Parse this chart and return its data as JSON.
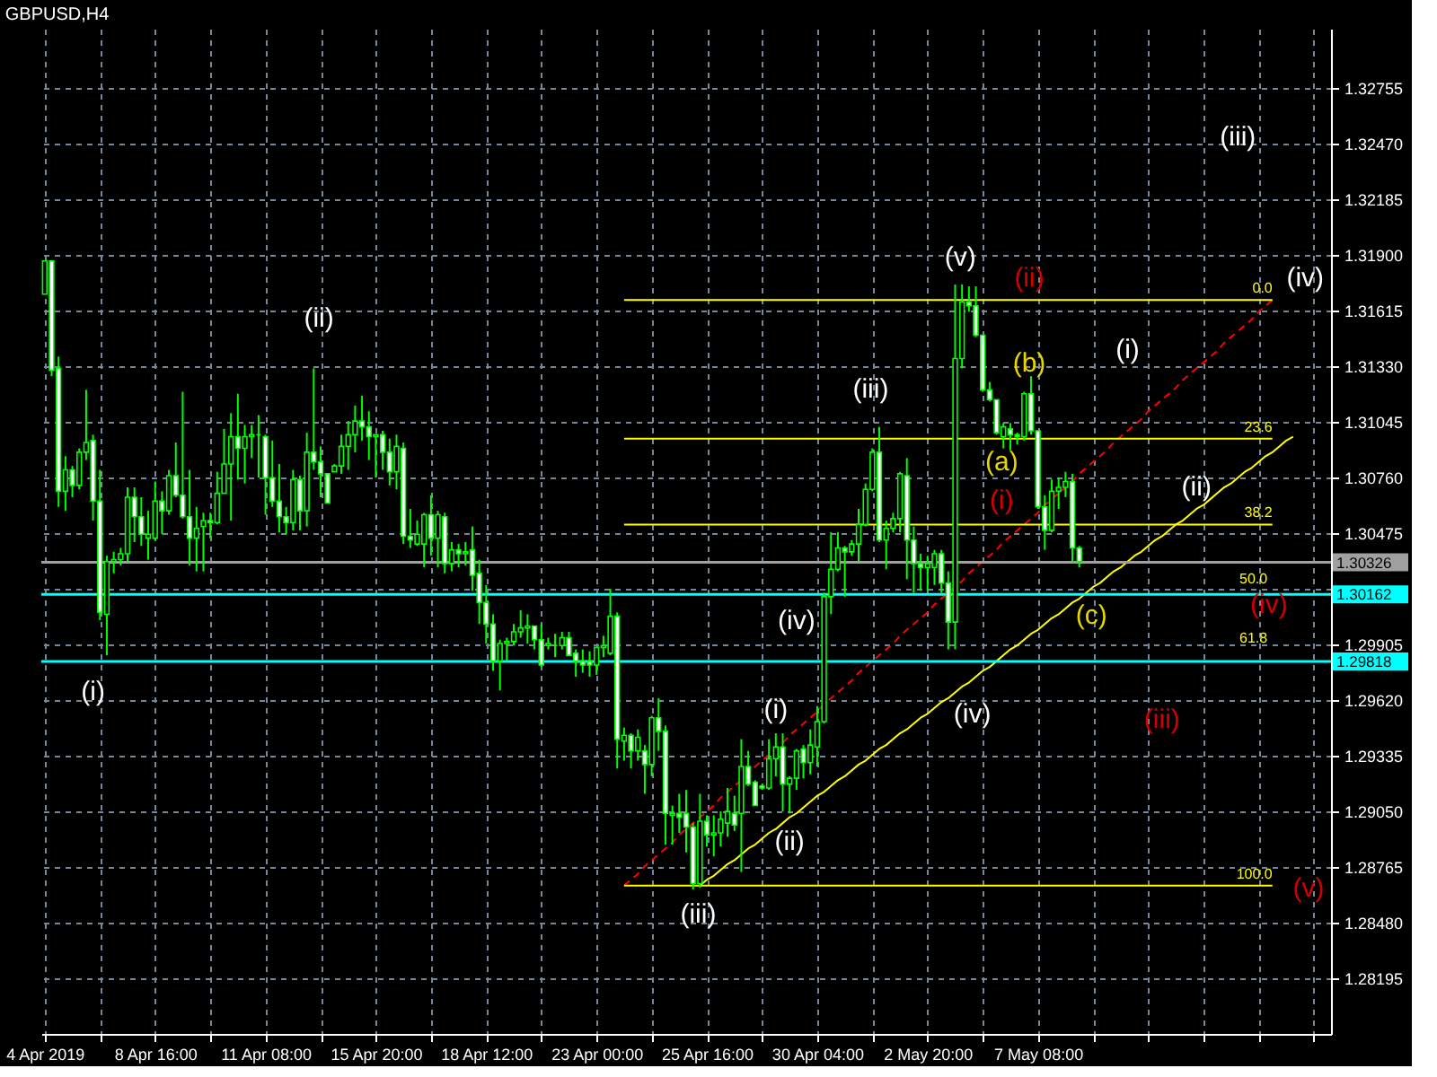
{
  "chart_data": {
    "type": "candlestick",
    "title": "GBPUSD,H4",
    "color": "#00ff00",
    "categories": [
      "4 Apr 2019",
      null,
      null,
      null,
      null,
      null,
      null,
      null,
      null,
      null,
      null,
      null,
      null,
      null,
      null,
      null,
      "8 Apr 16:00",
      null,
      null,
      null,
      null,
      null,
      null,
      null,
      null,
      null,
      null,
      null,
      null,
      null,
      null,
      null,
      "11 Apr 08:00",
      null,
      null,
      null,
      null,
      null,
      null,
      null,
      null,
      null,
      null,
      null,
      null,
      null,
      null,
      null,
      "15 Apr 20:00",
      null,
      null,
      null,
      null,
      null,
      null,
      null,
      null,
      null,
      null,
      null,
      null,
      null,
      null,
      null,
      "18 Apr 12:00",
      null,
      null,
      null,
      null,
      null,
      null,
      null,
      null,
      null,
      null,
      null,
      null,
      null,
      null,
      null,
      "23 Apr 00:00",
      null,
      null,
      null,
      null,
      null,
      null,
      null,
      null,
      null,
      null,
      null,
      null,
      null,
      null,
      null,
      "25 Apr 16:00",
      null,
      null,
      null,
      null,
      null,
      null,
      null,
      null,
      null,
      null,
      null,
      null,
      null,
      null,
      null,
      "30 Apr 04:00",
      null,
      null,
      null,
      null,
      null,
      null,
      null,
      null,
      null,
      null,
      null,
      null,
      null,
      null,
      null,
      "2 May 20:00",
      null,
      null,
      null,
      null,
      null,
      null,
      null,
      null,
      null,
      null,
      null,
      null,
      null,
      null,
      null,
      "7 May 08:00",
      null,
      null,
      null,
      null,
      null,
      null,
      null,
      null,
      null,
      null,
      null,
      null,
      null,
      null,
      null,
      null,
      null,
      null,
      null,
      null,
      null,
      null,
      null,
      null,
      null,
      null,
      null,
      null,
      null,
      null,
      null,
      null,
      null,
      null,
      null,
      null,
      null,
      null,
      null,
      null,
      null,
      null
    ],
    "ohlc": [
      [
        1.317,
        1.3187,
        1.317,
        1.3187
      ],
      [
        1.3187,
        1.3187,
        1.3128,
        1.3131
      ],
      [
        1.3132,
        1.3138,
        1.3061,
        1.3069
      ],
      [
        1.3069,
        1.3087,
        1.3059,
        1.308
      ],
      [
        1.308,
        1.3082,
        1.3066,
        1.3072
      ],
      [
        1.3072,
        1.3091,
        1.307,
        1.3089
      ],
      [
        1.3089,
        1.3121,
        1.3085,
        1.3094
      ],
      [
        1.3095,
        1.3098,
        1.3054,
        1.3064
      ],
      [
        1.3064,
        1.308,
        1.3003,
        1.3007
      ],
      [
        1.3006,
        1.3036,
        1.2985,
        1.3033
      ],
      [
        1.3033,
        1.3038,
        1.3027,
        1.3034
      ],
      [
        1.3034,
        1.304,
        1.3031,
        1.3037
      ],
      [
        1.3037,
        1.3071,
        1.3033,
        1.3066
      ],
      [
        1.3066,
        1.3071,
        1.3043,
        1.3056
      ],
      [
        1.3056,
        1.3066,
        1.3041,
        1.3047
      ],
      [
        1.3045,
        1.3059,
        1.3034,
        1.3047
      ],
      [
        1.3045,
        1.3074,
        1.3044,
        1.3064
      ],
      [
        1.3064,
        1.3069,
        1.3047,
        1.3059
      ],
      [
        1.3059,
        1.308,
        1.3057,
        1.3077
      ],
      [
        1.3077,
        1.3094,
        1.3066,
        1.3067
      ],
      [
        1.3067,
        1.312,
        1.3055,
        1.3056
      ],
      [
        1.3056,
        1.308,
        1.3031,
        1.3045
      ],
      [
        1.3045,
        1.3061,
        1.3028,
        1.305
      ],
      [
        1.3051,
        1.3058,
        1.3028,
        1.3054
      ],
      [
        1.3054,
        1.3058,
        1.3045,
        1.3053
      ],
      [
        1.3053,
        1.3079,
        1.3052,
        1.3068
      ],
      [
        1.3068,
        1.3101,
        1.3068,
        1.3083
      ],
      [
        1.3083,
        1.3109,
        1.3054,
        1.3097
      ],
      [
        1.3097,
        1.3119,
        1.3075,
        1.3091
      ],
      [
        1.3091,
        1.3103,
        1.3073,
        1.3097
      ],
      [
        1.3097,
        1.3103,
        1.3086,
        1.3098
      ],
      [
        1.3098,
        1.3108,
        1.3076,
        1.3098
      ],
      [
        1.3097,
        1.3098,
        1.3057,
        1.3076
      ],
      [
        1.3076,
        1.3095,
        1.3061,
        1.3064
      ],
      [
        1.3064,
        1.3083,
        1.3048,
        1.3056
      ],
      [
        1.3056,
        1.3061,
        1.3047,
        1.3053
      ],
      [
        1.3053,
        1.308,
        1.3049,
        1.3075
      ],
      [
        1.3075,
        1.3077,
        1.3049,
        1.3059
      ],
      [
        1.3059,
        1.3099,
        1.3051,
        1.3089
      ],
      [
        1.3089,
        1.3132,
        1.308,
        1.3084
      ],
      [
        1.3084,
        1.3092,
        1.3066,
        1.3078
      ],
      [
        1.3078,
        1.3078,
        1.3063,
        1.3063
      ],
      [
        1.3079,
        1.3083,
        1.3079,
        1.3082
      ],
      [
        1.3082,
        1.3098,
        1.3078,
        1.3092
      ],
      [
        1.3092,
        1.3105,
        1.308,
        1.3098
      ],
      [
        1.3098,
        1.3113,
        1.3089,
        1.3105
      ],
      [
        1.3105,
        1.3118,
        1.3095,
        1.3102
      ],
      [
        1.3102,
        1.311,
        1.3085,
        1.3097
      ],
      [
        1.3097,
        1.3098,
        1.3076,
        1.3098
      ],
      [
        1.3098,
        1.31,
        1.308,
        1.3089
      ],
      [
        1.3089,
        1.3096,
        1.3072,
        1.3079
      ],
      [
        1.3079,
        1.3098,
        1.307,
        1.3092
      ],
      [
        1.3091,
        1.3094,
        1.3042,
        1.3046
      ],
      [
        1.3046,
        1.306,
        1.304,
        1.3044
      ],
      [
        1.3042,
        1.3054,
        1.3041,
        1.3047
      ],
      [
        1.3042,
        1.3058,
        1.303,
        1.3057
      ],
      [
        1.3057,
        1.3067,
        1.3036,
        1.3045
      ],
      [
        1.3045,
        1.3059,
        1.303,
        1.3057
      ],
      [
        1.3056,
        1.3058,
        1.3027,
        1.3032
      ],
      [
        1.3032,
        1.3043,
        1.3028,
        1.3039
      ],
      [
        1.3039,
        1.3042,
        1.303,
        1.3037
      ],
      [
        1.3037,
        1.3043,
        1.3031,
        1.3038
      ],
      [
        1.3039,
        1.3051,
        1.3018,
        1.3026
      ],
      [
        1.3027,
        1.3034,
        1.3001,
        1.3012
      ],
      [
        1.3012,
        1.3021,
        1.2991,
        1.3001
      ],
      [
        1.3001,
        1.3006,
        1.2977,
        1.2982
      ],
      [
        1.2982,
        1.2993,
        1.2967,
        1.2991
      ],
      [
        1.2991,
        1.2994,
        1.2982,
        1.2992
      ],
      [
        1.2992,
        1.3001,
        1.299,
        1.2997
      ],
      [
        1.2997,
        1.3008,
        1.2994,
        1.2999
      ],
      [
        1.2999,
        1.3006,
        1.2991,
        1.3
      ],
      [
        1.3,
        1.3,
        1.2988,
        1.2993
      ],
      [
        1.2993,
        1.3001,
        1.2979,
        1.298
      ],
      [
        1.299,
        1.2994,
        1.2988,
        1.2991
      ],
      [
        1.299,
        1.2996,
        1.2984,
        1.299
      ],
      [
        1.299,
        1.2997,
        1.2988,
        1.2994
      ],
      [
        1.2994,
        1.2997,
        1.2985,
        1.2985
      ],
      [
        1.2986,
        1.2988,
        1.2974,
        1.2982
      ],
      [
        1.2982,
        1.2988,
        1.2976,
        1.298
      ],
      [
        1.2982,
        1.2987,
        1.2974,
        1.298
      ],
      [
        1.298,
        1.2989,
        1.2975,
        1.2989
      ],
      [
        1.2989,
        1.2995,
        1.2984,
        1.299
      ],
      [
        1.2986,
        1.3019,
        1.2985,
        1.3005
      ],
      [
        1.3005,
        1.3007,
        1.2927,
        1.2942
      ],
      [
        1.2941,
        1.2948,
        1.2931,
        1.2944
      ],
      [
        1.2944,
        1.2945,
        1.2927,
        1.2936
      ],
      [
        1.2936,
        1.2947,
        1.2931,
        1.2943
      ],
      [
        1.2936,
        1.2939,
        1.2914,
        1.2929
      ],
      [
        1.2929,
        1.2954,
        1.2923,
        1.2953
      ],
      [
        1.2953,
        1.2963,
        1.2936,
        1.2946
      ],
      [
        1.2946,
        1.2949,
        1.2888,
        1.2904
      ],
      [
        1.2903,
        1.2908,
        1.2888,
        1.2904
      ],
      [
        1.2904,
        1.2914,
        1.2894,
        1.2902
      ],
      [
        1.2904,
        1.2916,
        1.2884,
        1.2897
      ],
      [
        1.2897,
        1.2899,
        1.2865,
        1.2868
      ],
      [
        1.2868,
        1.2914,
        1.2866,
        1.29
      ],
      [
        1.29,
        1.2903,
        1.2887,
        1.2893
      ],
      [
        1.2893,
        1.2903,
        1.2882,
        1.2894
      ],
      [
        1.2894,
        1.2905,
        1.2887,
        1.2901
      ],
      [
        1.2899,
        1.2917,
        1.2892,
        1.2905
      ],
      [
        1.2904,
        1.2913,
        1.2895,
        1.2898
      ],
      [
        1.2904,
        1.2942,
        1.2874,
        1.2928
      ],
      [
        1.2928,
        1.2936,
        1.2918,
        1.2919
      ],
      [
        1.292,
        1.2921,
        1.2908,
        1.2908
      ],
      [
        1.2918,
        1.2919,
        1.2916,
        1.2917
      ],
      [
        1.2917,
        1.2942,
        1.2916,
        1.2932
      ],
      [
        1.2932,
        1.2945,
        1.2923,
        1.2938
      ],
      [
        1.2938,
        1.2945,
        1.2905,
        1.2919
      ],
      [
        1.2919,
        1.2923,
        1.2904,
        1.2922
      ],
      [
        1.2922,
        1.2937,
        1.2916,
        1.2936
      ],
      [
        1.2937,
        1.2939,
        1.2922,
        1.293
      ],
      [
        1.293,
        1.2947,
        1.2924,
        1.2939
      ],
      [
        1.2938,
        1.2959,
        1.2928,
        1.2951
      ],
      [
        1.2951,
        1.3017,
        1.295,
        1.3015
      ],
      [
        1.3015,
        1.3048,
        1.3006,
        1.3029
      ],
      [
        1.3029,
        1.3048,
        1.3028,
        1.304
      ],
      [
        1.304,
        1.3041,
        1.3015,
        1.3038
      ],
      [
        1.3038,
        1.3044,
        1.3036,
        1.3042
      ],
      [
        1.3042,
        1.306,
        1.3033,
        1.3052
      ],
      [
        1.3052,
        1.3073,
        1.3051,
        1.307
      ],
      [
        1.307,
        1.3091,
        1.3069,
        1.3089
      ],
      [
        1.3089,
        1.3102,
        1.3043,
        1.3044
      ],
      [
        1.3044,
        1.3054,
        1.3029,
        1.305
      ],
      [
        1.305,
        1.3058,
        1.3048,
        1.3055
      ],
      [
        1.3055,
        1.3079,
        1.3048,
        1.3078
      ],
      [
        1.3077,
        1.3086,
        1.3024,
        1.3044
      ],
      [
        1.3044,
        1.3051,
        1.3017,
        1.3032
      ],
      [
        1.3032,
        1.3037,
        1.3018,
        1.303
      ],
      [
        1.303,
        1.3036,
        1.3018,
        1.3032
      ],
      [
        1.303,
        1.3039,
        1.3021,
        1.3037
      ],
      [
        1.3037,
        1.3039,
        1.3017,
        1.3022
      ],
      [
        1.3022,
        1.3028,
        1.2988,
        1.3002
      ],
      [
        1.3002,
        1.3175,
        1.2988,
        1.3137
      ],
      [
        1.3137,
        1.3175,
        1.3132,
        1.3166
      ],
      [
        1.3166,
        1.3174,
        1.3161,
        1.3164
      ],
      [
        1.3164,
        1.3174,
        1.3148,
        1.3149
      ],
      [
        1.3149,
        1.3149,
        1.312,
        1.3121
      ],
      [
        1.3121,
        1.3125,
        1.3115,
        1.3116
      ],
      [
        1.3116,
        1.3116,
        1.3098,
        1.3099
      ],
      [
        1.3097,
        1.3104,
        1.3091,
        1.3102
      ],
      [
        1.3101,
        1.3104,
        1.309,
        1.3098
      ],
      [
        1.3098,
        1.3099,
        1.3093,
        1.3097
      ],
      [
        1.3097,
        1.312,
        1.3095,
        1.3119
      ],
      [
        1.3119,
        1.3128,
        1.3098,
        1.31
      ],
      [
        1.31,
        1.31,
        1.306,
        1.3061
      ],
      [
        1.3061,
        1.3067,
        1.3039,
        1.3049
      ],
      [
        1.3049,
        1.3075,
        1.3048,
        1.3069
      ],
      [
        1.3069,
        1.3076,
        1.306,
        1.3071
      ],
      [
        1.3071,
        1.3079,
        1.3066,
        1.3074
      ],
      [
        1.3074,
        1.3078,
        1.3033,
        1.304
      ],
      [
        1.304,
        1.3041,
        1.303,
        1.3033
      ],
      null,
      null,
      null,
      null,
      null,
      null,
      null,
      null,
      null,
      null,
      null,
      null,
      null,
      null,
      null,
      null,
      null,
      null,
      null,
      null,
      null,
      null,
      null,
      null,
      null,
      null,
      null,
      null,
      null,
      null,
      null,
      null,
      null,
      null,
      null,
      null
    ],
    "series": [
      {
        "type": "line",
        "color": "#ff0000",
        "line_style": "dashed",
        "values": [
          null,
          null,
          null,
          null,
          null,
          null,
          null,
          null,
          null,
          null,
          null,
          null,
          null,
          null,
          null,
          null,
          null,
          null,
          null,
          null,
          null,
          null,
          null,
          null,
          null,
          null,
          null,
          null,
          null,
          null,
          null,
          null,
          null,
          null,
          null,
          null,
          null,
          null,
          null,
          null,
          null,
          null,
          null,
          null,
          null,
          null,
          null,
          null,
          null,
          null,
          null,
          null,
          null,
          null,
          null,
          null,
          null,
          null,
          null,
          null,
          null,
          null,
          null,
          null,
          null,
          null,
          null,
          null,
          null,
          null,
          null,
          null,
          null,
          null,
          null,
          null,
          null,
          null,
          null,
          null,
          null,
          null,
          null,
          null,
          1.2867,
          1.287,
          1.2873,
          1.2877,
          1.288,
          1.2883,
          1.2886,
          1.2889,
          1.2893,
          1.2896,
          1.2899,
          1.2902,
          1.2905,
          1.2908,
          1.2912,
          1.2915,
          1.2918,
          1.2921,
          1.2924,
          1.2928,
          1.2931,
          1.2934,
          1.2937,
          1.294,
          1.2944,
          1.2947,
          1.295,
          1.2953,
          1.2956,
          1.296,
          1.2963,
          1.2966,
          1.2969,
          1.2972,
          1.2976,
          1.2979,
          1.2982,
          1.2985,
          1.2988,
          1.2991,
          1.2995,
          1.2998,
          1.3001,
          1.3004,
          1.3007,
          1.3011,
          1.3014,
          1.3017,
          1.302,
          1.3023,
          1.3027,
          1.303,
          1.3033,
          1.3036,
          1.3039,
          1.3043,
          1.3046,
          1.3049,
          1.3052,
          1.3055,
          1.3058,
          1.3062,
          1.3065,
          1.3068,
          1.3071,
          1.3074,
          1.3078,
          1.3081,
          1.3084,
          1.3087,
          1.309,
          1.3094,
          1.3097,
          1.31,
          1.3103,
          1.3106,
          1.311,
          1.3113,
          1.3116,
          1.3119,
          1.3122,
          1.3126,
          1.3129,
          1.3132,
          1.3135,
          1.3138,
          1.3141,
          1.3145,
          1.3148,
          1.3151,
          1.3154,
          1.3157,
          1.3161,
          1.3164,
          1.3167,
          null,
          null,
          null,
          null,
          null,
          null,
          null,
          null
        ]
      },
      {
        "type": "line",
        "color": "#ffff00",
        "values": [
          null,
          null,
          null,
          null,
          null,
          null,
          null,
          null,
          null,
          null,
          null,
          null,
          null,
          null,
          null,
          null,
          null,
          null,
          null,
          null,
          null,
          null,
          null,
          null,
          null,
          null,
          null,
          null,
          null,
          null,
          null,
          null,
          null,
          null,
          null,
          null,
          null,
          null,
          null,
          null,
          null,
          null,
          null,
          null,
          null,
          null,
          null,
          null,
          null,
          null,
          null,
          null,
          null,
          null,
          null,
          null,
          null,
          null,
          null,
          null,
          null,
          null,
          null,
          null,
          null,
          null,
          null,
          null,
          null,
          null,
          null,
          null,
          null,
          null,
          null,
          null,
          null,
          null,
          null,
          null,
          null,
          null,
          null,
          null,
          null,
          null,
          null,
          null,
          null,
          null,
          null,
          null,
          null,
          null,
          null,
          1.2867,
          1.287,
          1.2872,
          1.2875,
          1.2878,
          1.288,
          1.2883,
          1.2886,
          1.2888,
          1.2891,
          1.2894,
          1.2896,
          1.2899,
          1.2902,
          1.2904,
          1.2907,
          1.291,
          1.2913,
          1.2915,
          1.2918,
          1.2921,
          1.2923,
          1.2926,
          1.2929,
          1.2931,
          1.2934,
          1.2937,
          1.2939,
          1.2942,
          1.2945,
          1.2947,
          1.295,
          1.2953,
          1.2955,
          1.2958,
          1.2961,
          1.2963,
          1.2966,
          1.2969,
          1.2971,
          1.2974,
          1.2977,
          1.2979,
          1.2982,
          1.2985,
          1.2988,
          1.299,
          1.2993,
          1.2996,
          1.2998,
          1.3001,
          1.3004,
          1.3006,
          1.3009,
          1.3012,
          1.3014,
          1.3017,
          1.302,
          1.3022,
          1.3025,
          1.3028,
          1.303,
          1.3033,
          1.3036,
          1.3038,
          1.3041,
          1.3044,
          1.3046,
          1.3049,
          1.3052,
          1.3054,
          1.3057,
          1.306,
          1.3062,
          1.3065,
          1.3068,
          1.3071,
          1.3073,
          1.3076,
          1.3079,
          1.3081,
          1.3084,
          1.3087,
          1.3089,
          1.3092,
          1.3095,
          1.3097,
          null,
          null,
          null,
          null,
          null
        ]
      },
      {
        "type": "line",
        "name": "0.0",
        "color": "#ffff00",
        "values": [
          null,
          null,
          null,
          null,
          null,
          null,
          null,
          null,
          null,
          null,
          null,
          null,
          null,
          null,
          null,
          null,
          null,
          null,
          null,
          null,
          null,
          null,
          null,
          null,
          null,
          null,
          null,
          null,
          null,
          null,
          null,
          null,
          null,
          null,
          null,
          null,
          null,
          null,
          null,
          null,
          null,
          null,
          null,
          null,
          null,
          null,
          null,
          null,
          null,
          null,
          null,
          null,
          null,
          null,
          null,
          null,
          null,
          null,
          null,
          null,
          null,
          null,
          null,
          null,
          null,
          null,
          null,
          null,
          null,
          null,
          null,
          null,
          null,
          null,
          null,
          null,
          null,
          null,
          null,
          null,
          null,
          null,
          null,
          null,
          1.3167,
          1.3167,
          1.3167,
          1.3167,
          1.3167,
          1.3167,
          1.3167,
          1.3167,
          1.3167,
          1.3167,
          1.3167,
          1.3167,
          1.3167,
          1.3167,
          1.3167,
          1.3167,
          1.3167,
          1.3167,
          1.3167,
          1.3167,
          1.3167,
          1.3167,
          1.3167,
          1.3167,
          1.3167,
          1.3167,
          1.3167,
          1.3167,
          1.3167,
          1.3167,
          1.3167,
          1.3167,
          1.3167,
          1.3167,
          1.3167,
          1.3167,
          1.3167,
          1.3167,
          1.3167,
          1.3167,
          1.3167,
          1.3167,
          1.3167,
          1.3167,
          1.3167,
          1.3167,
          1.3167,
          1.3167,
          1.3167,
          1.3167,
          1.3167,
          1.3167,
          1.3167,
          1.3167,
          1.3167,
          1.3167,
          1.3167,
          1.3167,
          1.3167,
          1.3167,
          1.3167,
          1.3167,
          1.3167,
          1.3167,
          1.3167,
          1.3167,
          1.3167,
          1.3167,
          1.3167,
          1.3167,
          1.3167,
          1.3167,
          1.3167,
          1.3167,
          1.3167,
          1.3167,
          1.3167,
          1.3167,
          1.3167,
          1.3167,
          1.3167,
          1.3167,
          1.3167,
          1.3167,
          1.3167,
          1.3167,
          1.3167,
          1.3167,
          1.3167,
          1.3167,
          1.3167,
          1.3167,
          1.3167,
          1.3167,
          1.3167,
          null,
          null,
          null,
          null,
          null,
          null,
          null,
          null
        ]
      },
      {
        "type": "line",
        "name": "23.6",
        "color": "#ffff00",
        "values": [
          null,
          null,
          null,
          null,
          null,
          null,
          null,
          null,
          null,
          null,
          null,
          null,
          null,
          null,
          null,
          null,
          null,
          null,
          null,
          null,
          null,
          null,
          null,
          null,
          null,
          null,
          null,
          null,
          null,
          null,
          null,
          null,
          null,
          null,
          null,
          null,
          null,
          null,
          null,
          null,
          null,
          null,
          null,
          null,
          null,
          null,
          null,
          null,
          null,
          null,
          null,
          null,
          null,
          null,
          null,
          null,
          null,
          null,
          null,
          null,
          null,
          null,
          null,
          null,
          null,
          null,
          null,
          null,
          null,
          null,
          null,
          null,
          null,
          null,
          null,
          null,
          null,
          null,
          null,
          null,
          null,
          null,
          null,
          null,
          1.3096,
          1.3096,
          1.3096,
          1.3096,
          1.3096,
          1.3096,
          1.3096,
          1.3096,
          1.3096,
          1.3096,
          1.3096,
          1.3096,
          1.3096,
          1.3096,
          1.3096,
          1.3096,
          1.3096,
          1.3096,
          1.3096,
          1.3096,
          1.3096,
          1.3096,
          1.3096,
          1.3096,
          1.3096,
          1.3096,
          1.3096,
          1.3096,
          1.3096,
          1.3096,
          1.3096,
          1.3096,
          1.3096,
          1.3096,
          1.3096,
          1.3096,
          1.3096,
          1.3096,
          1.3096,
          1.3096,
          1.3096,
          1.3096,
          1.3096,
          1.3096,
          1.3096,
          1.3096,
          1.3096,
          1.3096,
          1.3096,
          1.3096,
          1.3096,
          1.3096,
          1.3096,
          1.3096,
          1.3096,
          1.3096,
          1.3096,
          1.3096,
          1.3096,
          1.3096,
          1.3096,
          1.3096,
          1.3096,
          1.3096,
          1.3096,
          1.3096,
          1.3096,
          1.3096,
          1.3096,
          1.3096,
          1.3096,
          1.3096,
          1.3096,
          1.3096,
          1.3096,
          1.3096,
          1.3096,
          1.3096,
          1.3096,
          1.3096,
          1.3096,
          1.3096,
          1.3096,
          1.3096,
          1.3096,
          1.3096,
          1.3096,
          1.3096,
          1.3096,
          1.3096,
          1.3096,
          1.3096,
          1.3096,
          1.3096,
          1.3096,
          null,
          null,
          null,
          null,
          null,
          null,
          null,
          null
        ]
      },
      {
        "type": "line",
        "name": "38.2",
        "color": "#ffff00",
        "values": [
          null,
          null,
          null,
          null,
          null,
          null,
          null,
          null,
          null,
          null,
          null,
          null,
          null,
          null,
          null,
          null,
          null,
          null,
          null,
          null,
          null,
          null,
          null,
          null,
          null,
          null,
          null,
          null,
          null,
          null,
          null,
          null,
          null,
          null,
          null,
          null,
          null,
          null,
          null,
          null,
          null,
          null,
          null,
          null,
          null,
          null,
          null,
          null,
          null,
          null,
          null,
          null,
          null,
          null,
          null,
          null,
          null,
          null,
          null,
          null,
          null,
          null,
          null,
          null,
          null,
          null,
          null,
          null,
          null,
          null,
          null,
          null,
          null,
          null,
          null,
          null,
          null,
          null,
          null,
          null,
          null,
          null,
          null,
          null,
          1.3052,
          1.3052,
          1.3052,
          1.3052,
          1.3052,
          1.3052,
          1.3052,
          1.3052,
          1.3052,
          1.3052,
          1.3052,
          1.3052,
          1.3052,
          1.3052,
          1.3052,
          1.3052,
          1.3052,
          1.3052,
          1.3052,
          1.3052,
          1.3052,
          1.3052,
          1.3052,
          1.3052,
          1.3052,
          1.3052,
          1.3052,
          1.3052,
          1.3052,
          1.3052,
          1.3052,
          1.3052,
          1.3052,
          1.3052,
          1.3052,
          1.3052,
          1.3052,
          1.3052,
          1.3052,
          1.3052,
          1.3052,
          1.3052,
          1.3052,
          1.3052,
          1.3052,
          1.3052,
          1.3052,
          1.3052,
          1.3052,
          1.3052,
          1.3052,
          1.3052,
          1.3052,
          1.3052,
          1.3052,
          1.3052,
          1.3052,
          1.3052,
          1.3052,
          1.3052,
          1.3052,
          1.3052,
          1.3052,
          1.3052,
          1.3052,
          1.3052,
          1.3052,
          1.3052,
          1.3052,
          1.3052,
          1.3052,
          1.3052,
          1.3052,
          1.3052,
          1.3052,
          1.3052,
          1.3052,
          1.3052,
          1.3052,
          1.3052,
          1.3052,
          1.3052,
          1.3052,
          1.3052,
          1.3052,
          1.3052,
          1.3052,
          1.3052,
          1.3052,
          1.3052,
          1.3052,
          1.3052,
          1.3052,
          1.3052,
          1.3052,
          null,
          null,
          null,
          null,
          null,
          null,
          null,
          null
        ]
      },
      {
        "type": "line",
        "name": "100.0",
        "color": "#ffff00",
        "values": [
          null,
          null,
          null,
          null,
          null,
          null,
          null,
          null,
          null,
          null,
          null,
          null,
          null,
          null,
          null,
          null,
          null,
          null,
          null,
          null,
          null,
          null,
          null,
          null,
          null,
          null,
          null,
          null,
          null,
          null,
          null,
          null,
          null,
          null,
          null,
          null,
          null,
          null,
          null,
          null,
          null,
          null,
          null,
          null,
          null,
          null,
          null,
          null,
          null,
          null,
          null,
          null,
          null,
          null,
          null,
          null,
          null,
          null,
          null,
          null,
          null,
          null,
          null,
          null,
          null,
          null,
          null,
          null,
          null,
          null,
          null,
          null,
          null,
          null,
          null,
          null,
          null,
          null,
          null,
          null,
          null,
          null,
          null,
          null,
          1.2867,
          1.2867,
          1.2867,
          1.2867,
          1.2867,
          1.2867,
          1.2867,
          1.2867,
          1.2867,
          1.2867,
          1.2867,
          1.2867,
          1.2867,
          1.2867,
          1.2867,
          1.2867,
          1.2867,
          1.2867,
          1.2867,
          1.2867,
          1.2867,
          1.2867,
          1.2867,
          1.2867,
          1.2867,
          1.2867,
          1.2867,
          1.2867,
          1.2867,
          1.2867,
          1.2867,
          1.2867,
          1.2867,
          1.2867,
          1.2867,
          1.2867,
          1.2867,
          1.2867,
          1.2867,
          1.2867,
          1.2867,
          1.2867,
          1.2867,
          1.2867,
          1.2867,
          1.2867,
          1.2867,
          1.2867,
          1.2867,
          1.2867,
          1.2867,
          1.2867,
          1.2867,
          1.2867,
          1.2867,
          1.2867,
          1.2867,
          1.2867,
          1.2867,
          1.2867,
          1.2867,
          1.2867,
          1.2867,
          1.2867,
          1.2867,
          1.2867,
          1.2867,
          1.2867,
          1.2867,
          1.2867,
          1.2867,
          1.2867,
          1.2867,
          1.2867,
          1.2867,
          1.2867,
          1.2867,
          1.2867,
          1.2867,
          1.2867,
          1.2867,
          1.2867,
          1.2867,
          1.2867,
          1.2867,
          1.2867,
          1.2867,
          1.2867,
          1.2867,
          1.2867,
          1.2867,
          1.2867,
          1.2867,
          1.2867,
          1.2867,
          null,
          null,
          null,
          null,
          null,
          null,
          null,
          null
        ]
      }
    ],
    "ylim": [
      1.2791,
      1.3306
    ],
    "yticks": [
      1.28195,
      {
        "value": 1.2848,
        "label": "1.28480"
      },
      1.28765,
      {
        "value": 1.2905,
        "label": "1.29050"
      },
      1.29335,
      {
        "value": 1.2962,
        "label": "1.29620"
      },
      1.29905,
      {
        "value": 1.3019,
        "label": null
      },
      1.30475,
      {
        "value": 1.3076,
        "label": "1.30760"
      },
      1.31045,
      {
        "value": 1.3133,
        "label": "1.31330"
      },
      1.31615,
      {
        "value": 1.319,
        "label": "1.31900"
      },
      1.32185,
      {
        "value": 1.3247,
        "label": "1.32470"
      },
      1.32755
    ],
    "grid": true,
    "ref_lines": [
      {
        "axis": "y",
        "value": 1.30326,
        "label": "1.30326",
        "color": "#a0a0a0"
      },
      {
        "axis": "y",
        "value": 1.30162,
        "label": "1.30162",
        "color": "#00ffff"
      },
      {
        "axis": "y",
        "value": 1.29818,
        "label": "1.29818",
        "color": "#00ffff"
      }
    ],
    "annotations": [
      "(i)",
      "(ii)",
      "(iii)",
      "(i)",
      "(ii)",
      "(iv)",
      "(iii)",
      "(iv)",
      "(v)",
      "(a)",
      "(i)",
      "(b)",
      "(ii)",
      "(c)",
      "(i)",
      "(iii)",
      "(ii)",
      "(iii)",
      "(iv)",
      "(v)",
      "(iv)",
      "50.0",
      "61.8"
    ]
  }
}
